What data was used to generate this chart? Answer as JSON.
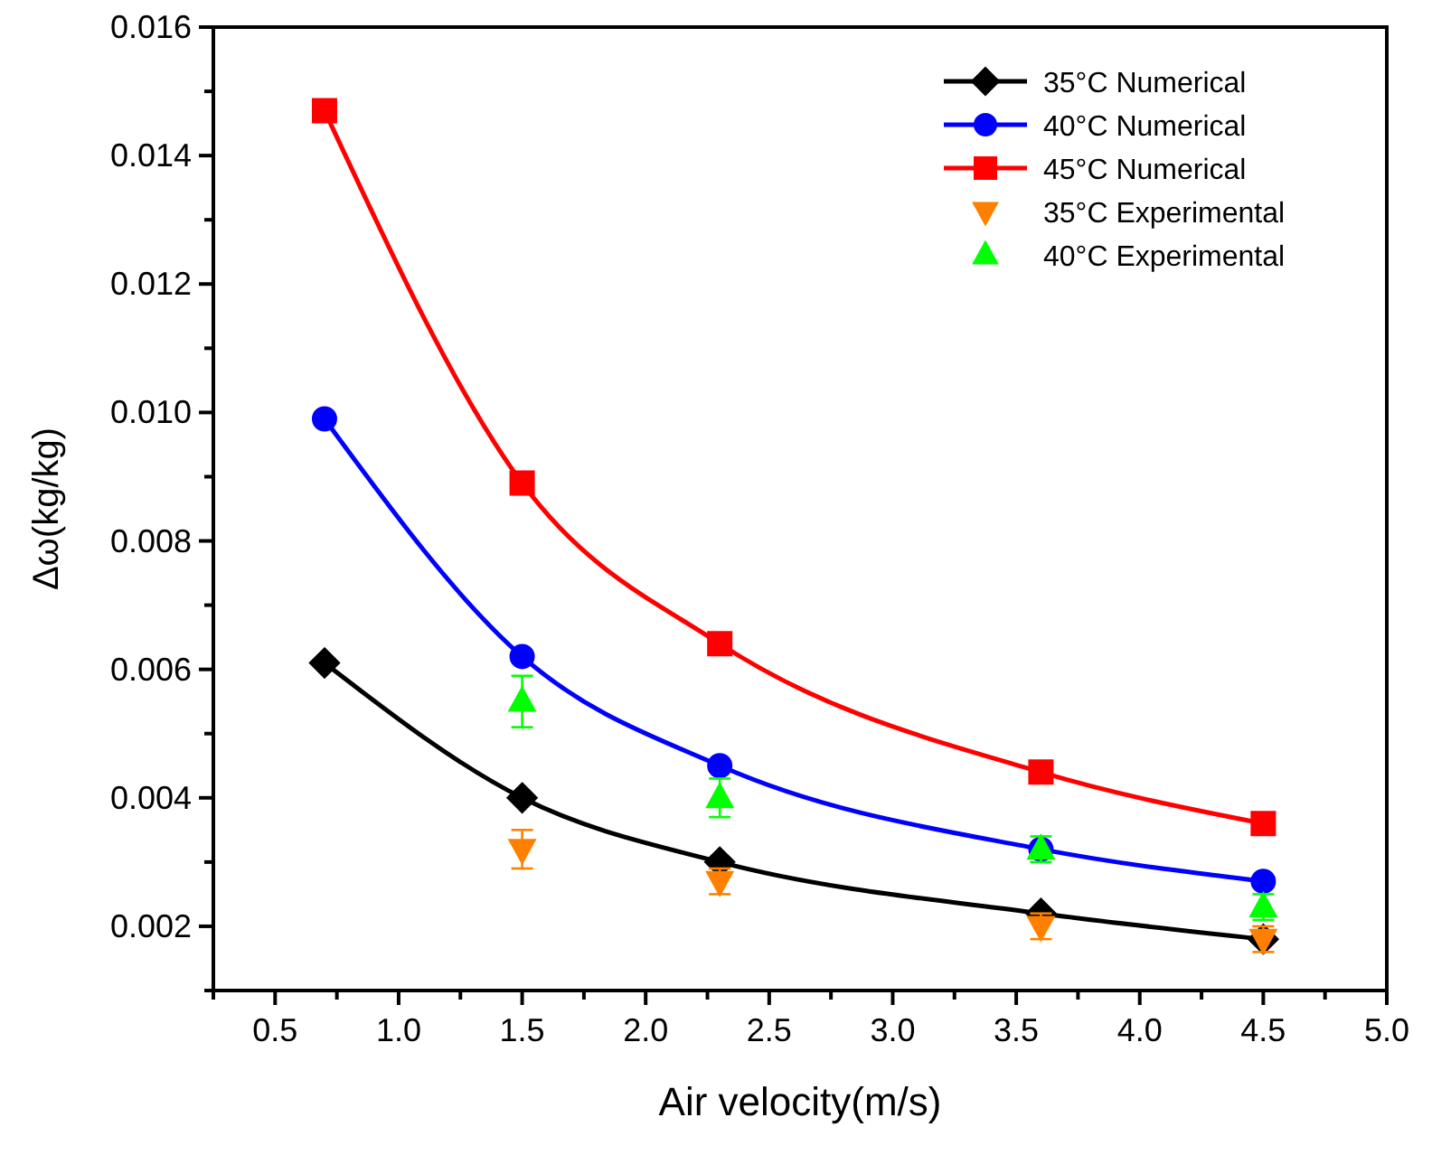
{
  "chart_data": {
    "type": "line",
    "xlabel": "Air velocity(m/s)",
    "ylabel": "Δω(kg/kg)",
    "xlim": [
      0.25,
      5.0
    ],
    "ylim": [
      0.001,
      0.016
    ],
    "xticks": [
      {
        "value": 0.25,
        "label": null
      },
      {
        "value": 0.5,
        "label": "0.5"
      },
      {
        "value": 0.75,
        "label": null
      },
      {
        "value": 1.0,
        "label": "1.0"
      },
      {
        "value": 1.25,
        "label": null
      },
      {
        "value": 1.5,
        "label": "1.5"
      },
      {
        "value": 1.75,
        "label": null
      },
      {
        "value": 2.0,
        "label": "2.0"
      },
      {
        "value": 2.25,
        "label": null
      },
      {
        "value": 2.5,
        "label": "2.5"
      },
      {
        "value": 2.75,
        "label": null
      },
      {
        "value": 3.0,
        "label": "3.0"
      },
      {
        "value": 3.25,
        "label": null
      },
      {
        "value": 3.5,
        "label": "3.5"
      },
      {
        "value": 3.75,
        "label": null
      },
      {
        "value": 4.0,
        "label": "4.0"
      },
      {
        "value": 4.25,
        "label": null
      },
      {
        "value": 4.5,
        "label": "4.5"
      },
      {
        "value": 4.75,
        "label": null
      },
      {
        "value": 5.0,
        "label": "5.0"
      }
    ],
    "yticks": [
      {
        "value": 0.001,
        "label": null
      },
      {
        "value": 0.002,
        "label": "0.002"
      },
      {
        "value": 0.003,
        "label": null
      },
      {
        "value": 0.004,
        "label": "0.004"
      },
      {
        "value": 0.005,
        "label": null
      },
      {
        "value": 0.006,
        "label": "0.006"
      },
      {
        "value": 0.007,
        "label": null
      },
      {
        "value": 0.008,
        "label": "0.008"
      },
      {
        "value": 0.009,
        "label": null
      },
      {
        "value": 0.01,
        "label": "0.010"
      },
      {
        "value": 0.011,
        "label": null
      },
      {
        "value": 0.012,
        "label": "0.012"
      },
      {
        "value": 0.013,
        "label": null
      },
      {
        "value": 0.014,
        "label": "0.014"
      },
      {
        "value": 0.015,
        "label": null
      },
      {
        "value": 0.016,
        "label": "0.016"
      }
    ],
    "legend": "top right",
    "grid": false,
    "line_style": "solid",
    "series": [
      {
        "name": "35°C Numerical",
        "marker": "diamond",
        "color": "#000000",
        "x": [
          0.7,
          1.5,
          2.3,
          3.6,
          4.5
        ],
        "values": [
          0.0061,
          0.004,
          0.003,
          0.0022,
          0.0018
        ]
      },
      {
        "name": "40°C Numerical",
        "marker": "circle",
        "color": "#0000ff",
        "x": [
          0.7,
          1.5,
          2.3,
          3.6,
          4.5
        ],
        "values": [
          0.0099,
          0.0062,
          0.0045,
          0.0032,
          0.0027
        ]
      },
      {
        "name": "45°C Numerical",
        "marker": "square",
        "color": "#ff0000",
        "x": [
          0.7,
          1.5,
          2.3,
          3.6,
          4.5
        ],
        "values": [
          0.0147,
          0.0089,
          0.0064,
          0.0044,
          0.0036
        ]
      },
      {
        "name": "35°C Experimental",
        "type": "scatter",
        "marker": "triangle-down",
        "color": "#ff8000",
        "x": [
          1.5,
          2.3,
          3.6,
          4.5
        ],
        "values": [
          0.0032,
          0.0027,
          0.002,
          0.0018
        ],
        "errors": [
          0.0003,
          0.0002,
          0.0002,
          0.0002
        ]
      },
      {
        "name": "40°C Experimental",
        "type": "scatter",
        "marker": "triangle",
        "color": "#00ff00",
        "x": [
          1.5,
          2.3,
          3.6,
          4.5
        ],
        "values": [
          0.0055,
          0.004,
          0.0032,
          0.0023
        ],
        "errors": [
          0.0004,
          0.0003,
          0.0002,
          0.0002
        ]
      }
    ]
  }
}
